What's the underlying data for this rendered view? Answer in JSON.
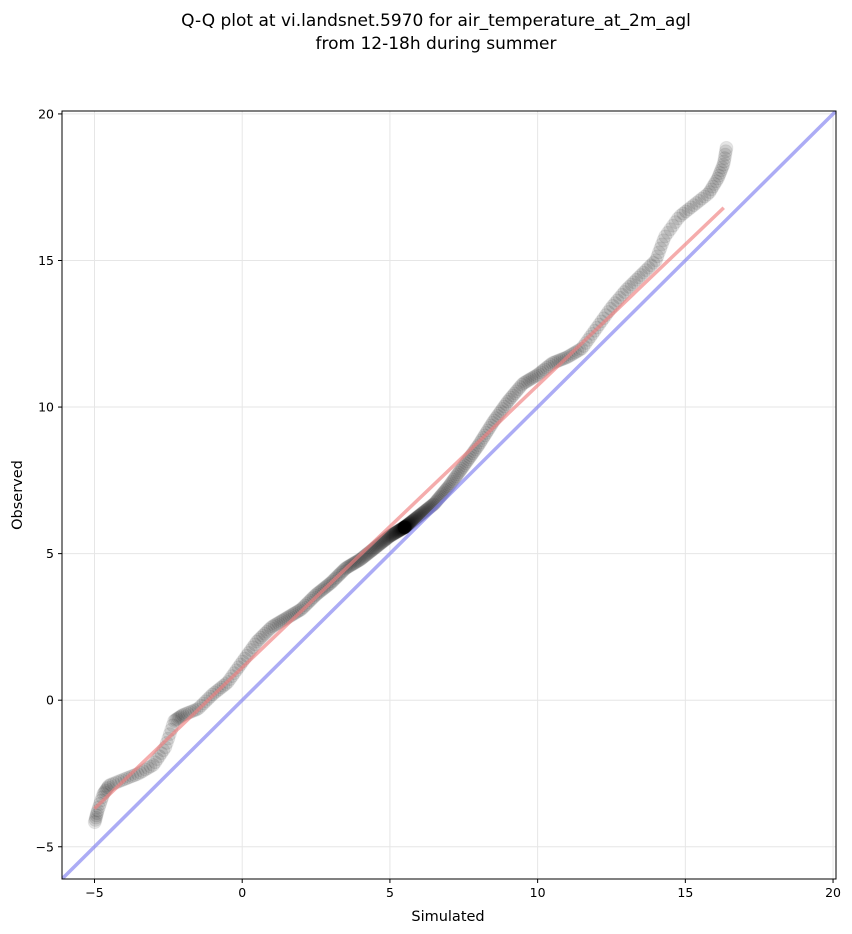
{
  "chart_data": {
    "type": "scatter",
    "title_line1": "Q-Q plot at vi.landsnet.5970 for air_temperature_at_2m_agl",
    "title_line2": "from 12-18h during summer",
    "xlabel": "Simulated",
    "ylabel": "Observed",
    "xlim": [
      -6.1,
      20.1
    ],
    "ylim": [
      -6.1,
      20.1
    ],
    "xticks": [
      -5,
      0,
      5,
      10,
      15,
      20
    ],
    "yticks": [
      -5,
      0,
      5,
      10,
      15,
      20
    ],
    "xtick_labels": [
      "−5",
      "0",
      "5",
      "10",
      "15",
      "20"
    ],
    "ytick_labels": [
      "−5",
      "0",
      "5",
      "10",
      "15",
      "20"
    ],
    "grid": true,
    "colors": {
      "points": "#000000",
      "fit_line": "#f08080",
      "identity_line": "#8080f0",
      "grid": "#e6e6e6"
    },
    "quantile_knots": [
      [
        -5.0,
        -4.2
      ],
      [
        -4.9,
        -3.8
      ],
      [
        -4.7,
        -3.2
      ],
      [
        -4.5,
        -2.9
      ],
      [
        -4.0,
        -2.7
      ],
      [
        -3.5,
        -2.5
      ],
      [
        -3.0,
        -2.2
      ],
      [
        -2.6,
        -1.6
      ],
      [
        -2.3,
        -0.7
      ],
      [
        -2.0,
        -0.5
      ],
      [
        -1.5,
        -0.3
      ],
      [
        -1.0,
        0.2
      ],
      [
        -0.5,
        0.6
      ],
      [
        0.0,
        1.3
      ],
      [
        0.5,
        2.0
      ],
      [
        1.0,
        2.5
      ],
      [
        1.5,
        2.8
      ],
      [
        2.0,
        3.1
      ],
      [
        2.5,
        3.6
      ],
      [
        3.0,
        4.0
      ],
      [
        3.5,
        4.5
      ],
      [
        4.0,
        4.8
      ],
      [
        4.5,
        5.2
      ],
      [
        5.0,
        5.6
      ],
      [
        5.5,
        5.9
      ],
      [
        6.0,
        6.3
      ],
      [
        6.5,
        6.7
      ],
      [
        7.0,
        7.3
      ],
      [
        7.5,
        8.0
      ],
      [
        8.0,
        8.7
      ],
      [
        8.5,
        9.5
      ],
      [
        9.0,
        10.2
      ],
      [
        9.5,
        10.8
      ],
      [
        10.0,
        11.1
      ],
      [
        10.5,
        11.5
      ],
      [
        11.0,
        11.7
      ],
      [
        11.5,
        12.0
      ],
      [
        12.0,
        12.7
      ],
      [
        12.5,
        13.4
      ],
      [
        13.0,
        14.0
      ],
      [
        13.5,
        14.5
      ],
      [
        14.0,
        15.0
      ],
      [
        14.3,
        15.8
      ],
      [
        14.8,
        16.5
      ],
      [
        15.3,
        16.9
      ],
      [
        15.8,
        17.3
      ],
      [
        16.1,
        17.8
      ],
      [
        16.3,
        18.3
      ],
      [
        16.4,
        18.9
      ]
    ],
    "n_points": 420,
    "fit_line": {
      "x": [
        -5.0,
        16.3
      ],
      "y": [
        -3.7,
        16.8
      ]
    },
    "identity_line": {
      "x": [
        -6.1,
        20.1
      ],
      "y": [
        -6.1,
        20.1
      ]
    }
  }
}
